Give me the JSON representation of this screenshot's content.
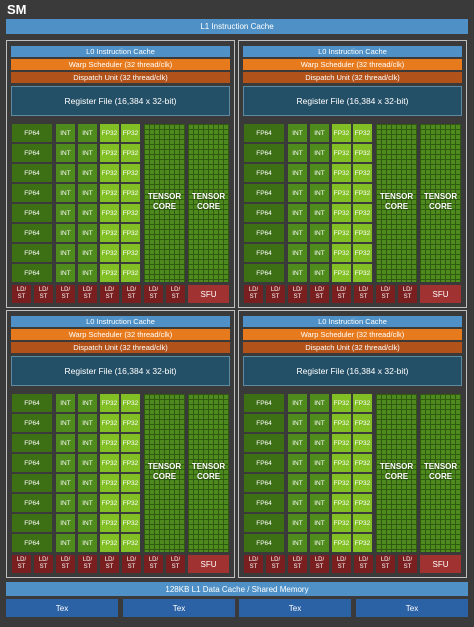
{
  "sm_label": "SM",
  "l1_instruction_cache": "L1 Instruction Cache",
  "partition": {
    "l0_cache": "L0 Instruction Cache",
    "warp_scheduler": "Warp Scheduler (32 thread/clk)",
    "dispatch_unit": "Dispatch Unit (32 thread/clk)",
    "register_file": "Register File (16,384 x 32-bit)",
    "fp64": "FP64",
    "int": "INT",
    "fp32": "FP32",
    "tensor_line1": "TENSOR",
    "tensor_line2": "CORE",
    "ld": "LD/",
    "st": "ST",
    "sfu": "SFU"
  },
  "l1_data_cache": "128KB L1 Data Cache / Shared Memory",
  "tex_label": "Tex",
  "colors": {
    "cache_blue": "#4f91c6",
    "warp_orange": "#e87a1e",
    "dispatch_brown": "#b1521b",
    "register_teal": "#245067",
    "fp64_green": "#3d6f15",
    "int_green": "#4f8a1d",
    "fp32_green": "#82bf24",
    "ldst_red": "#7a1f1f",
    "tex_blue": "#2b62a6"
  }
}
